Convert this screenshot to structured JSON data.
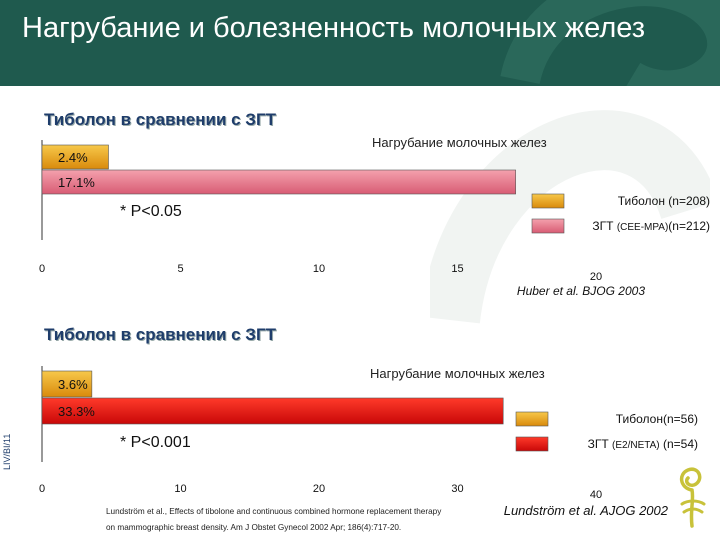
{
  "slide": {
    "title": "Нагрубание и болезненность молочных желез",
    "vertical_code": "LIV/BI/11",
    "reference_line1": "Lundström et al., Effects of tibolone and continuous combined hormone replacement therapy",
    "reference_line2": "on mammographic breast density. Am J Obstet Gynecol 2002 Apr; 186(4):717-20."
  },
  "colors": {
    "header_bg": "#1f5a4e",
    "tibolone": "#f0a81c",
    "hrt_chart1": "#e8748a",
    "hrt_chart2": "#e01010"
  },
  "chart_data": [
    {
      "type": "bar",
      "orientation": "horizontal",
      "title": "Тиболон в сравнении с ЗГТ",
      "subtitle": "Нагрубание молочных желез",
      "series": [
        {
          "name": "Тиболон (n=208)",
          "value": 2.4,
          "label": "2.4%"
        },
        {
          "name": "ЗГТ (CEE-MPA)(n=212)",
          "value": 17.1,
          "label": "17.1%"
        }
      ],
      "legend": [
        {
          "main": "Тиболон (n=208)",
          "detail": ""
        },
        {
          "main": "ЗГТ ",
          "detail": "(CEE-MPA)",
          "tail": "(n=212)"
        }
      ],
      "xlim": [
        0,
        20
      ],
      "ticks": [
        "0",
        "5",
        "10",
        "15",
        "20"
      ],
      "tick_values": [
        0,
        5,
        10,
        15,
        20
      ],
      "significance": "* P<0.05",
      "citation": "Huber et al. BJOG 2003"
    },
    {
      "type": "bar",
      "orientation": "horizontal",
      "title": "Тиболон в сравнении с ЗГТ",
      "subtitle": "Нагрубание молочных желез",
      "series": [
        {
          "name": "Тиболон(n=56)",
          "value": 3.6,
          "label": "3.6%"
        },
        {
          "name": "ЗГТ (E2/NETA) (n=54)",
          "value": 33.3,
          "label": "33.3%"
        }
      ],
      "legend": [
        {
          "main": "Тиболон(n=56)",
          "detail": ""
        },
        {
          "main": "ЗГТ ",
          "detail": "(E2/NETA)",
          "tail": " (n=54)"
        }
      ],
      "xlim": [
        0,
        40
      ],
      "ticks": [
        "0",
        "10",
        "20",
        "30",
        "40"
      ],
      "tick_values": [
        0,
        10,
        20,
        30,
        40
      ],
      "significance": "* P<0.001",
      "citation": "Lundström et al. AJOG 2002"
    }
  ]
}
